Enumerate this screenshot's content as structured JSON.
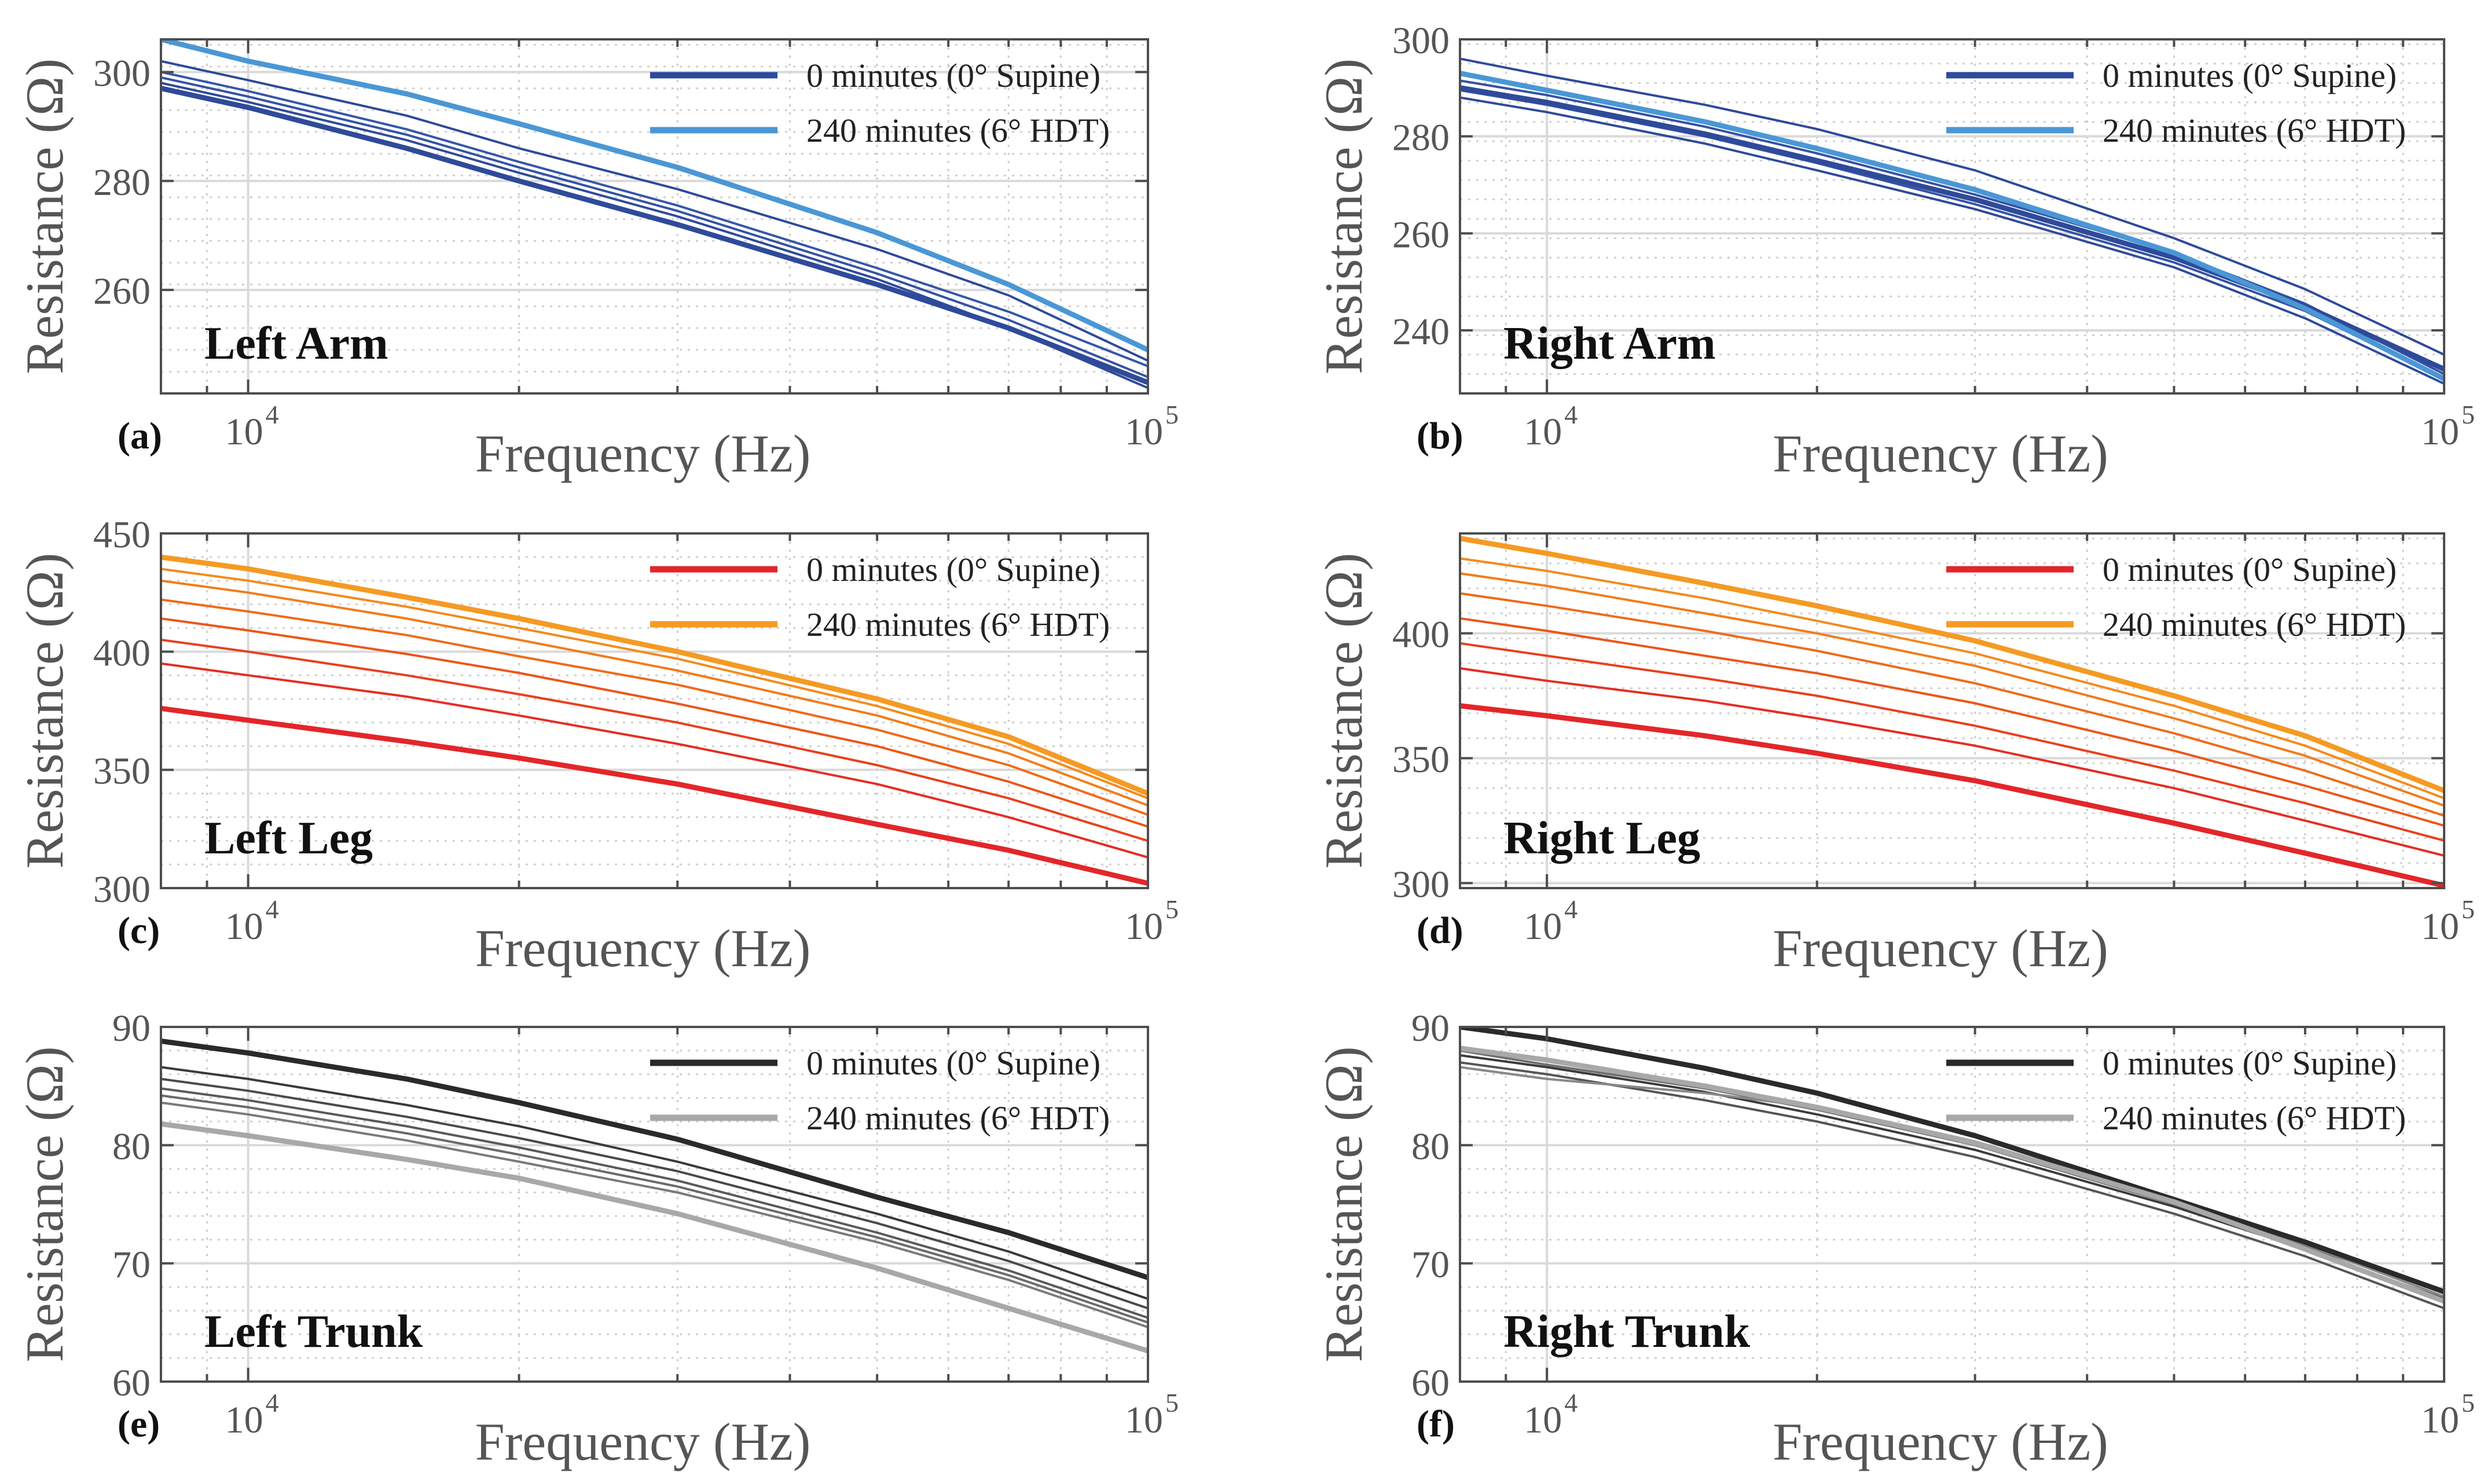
{
  "figure": {
    "x_axis_label": "Frequency (Hz)",
    "y_axis_label": "Resistance (Ω)",
    "legend_labels": [
      "0 minutes (0° Supine)",
      "240 minutes (6° HDT)"
    ]
  },
  "chart_data": [
    {
      "type": "line",
      "panel_label": "(a)",
      "title": "Left Arm",
      "xlabel": "Frequency (Hz)",
      "ylabel": "Resistance (Ω)",
      "xscale": "log",
      "xlim": [
        8000,
        100000
      ],
      "ylim": [
        241,
        306
      ],
      "yticks": [
        260,
        280,
        300
      ],
      "xticks": [
        {
          "base": "10",
          "exp": "4"
        },
        {
          "base": "10",
          "exp": "5"
        }
      ],
      "legend_position": "top-right",
      "legend": [
        {
          "label": "0 minutes (0° Supine)",
          "color": "#2E4A9A"
        },
        {
          "label": "240 minutes (6° HDT)",
          "color": "#4A97D6"
        }
      ],
      "x": [
        8000,
        10000,
        15000,
        20000,
        30000,
        50000,
        70000,
        100000
      ],
      "series": [
        {
          "name": "0 minutes (0° Supine)",
          "color": "#2E4A9A",
          "width": 9,
          "values": [
            297,
            293.5,
            286,
            280,
            272,
            261,
            253,
            243
          ]
        },
        {
          "name": "interval",
          "color": "#2E4A9A",
          "width": 4,
          "values": [
            298,
            294.5,
            287.5,
            281.5,
            273.5,
            262,
            253,
            242
          ]
        },
        {
          "name": "interval",
          "color": "#3552A3",
          "width": 4,
          "values": [
            299,
            295.5,
            288.5,
            282.5,
            274.5,
            263,
            254.5,
            244
          ]
        },
        {
          "name": "interval",
          "color": "#3557AA",
          "width": 4,
          "values": [
            300,
            296.5,
            289.5,
            283.5,
            275.5,
            264,
            256,
            246
          ]
        },
        {
          "name": "interval",
          "color": "#2E4A9A",
          "width": 4,
          "values": [
            302,
            298.5,
            292,
            286,
            278.5,
            267.5,
            259,
            247
          ]
        },
        {
          "name": "240 minutes (6° HDT)",
          "color": "#4A97D6",
          "width": 9,
          "values": [
            306,
            302,
            296,
            290.5,
            282.5,
            270.5,
            261,
            249
          ]
        }
      ]
    },
    {
      "type": "line",
      "panel_label": "(b)",
      "title": "Right Arm",
      "xlabel": "Frequency (Hz)",
      "ylabel": "Resistance (Ω)",
      "xscale": "log",
      "xlim": [
        8000,
        100000
      ],
      "ylim": [
        227,
        300
      ],
      "yticks": [
        240,
        260,
        280,
        300
      ],
      "xticks": [
        {
          "base": "10",
          "exp": "4"
        },
        {
          "base": "10",
          "exp": "5"
        }
      ],
      "legend_position": "top-right",
      "legend": [
        {
          "label": "0 minutes (0° Supine)",
          "color": "#2E4A9A"
        },
        {
          "label": "240 minutes (6° HDT)",
          "color": "#4A97D6"
        }
      ],
      "x": [
        8000,
        10000,
        15000,
        20000,
        30000,
        50000,
        70000,
        100000
      ],
      "series": [
        {
          "name": "0 minutes (0° Supine)",
          "color": "#2E4A9A",
          "width": 9,
          "values": [
            290,
            287,
            280.5,
            275,
            267,
            255,
            245,
            232
          ]
        },
        {
          "name": "interval",
          "color": "#2E4A9A",
          "width": 4,
          "values": [
            288,
            285,
            278.5,
            273,
            265,
            253,
            242.5,
            229
          ]
        },
        {
          "name": "interval",
          "color": "#3552A3",
          "width": 4,
          "values": [
            291.5,
            288.5,
            282,
            276.5,
            268,
            256,
            245.5,
            231
          ]
        },
        {
          "name": "interval",
          "color": "#3552A3",
          "width": 4,
          "values": [
            289.5,
            286.5,
            280,
            274.5,
            266,
            254,
            244,
            230
          ]
        },
        {
          "name": "interval",
          "color": "#2E4A9A",
          "width": 4,
          "values": [
            296,
            292.5,
            286.5,
            281.5,
            273,
            259,
            248.5,
            235
          ]
        },
        {
          "name": "240 minutes (6° HDT)",
          "color": "#4A97D6",
          "width": 9,
          "values": [
            293,
            289.5,
            283,
            277.5,
            269,
            256,
            244.5,
            230
          ]
        }
      ]
    },
    {
      "type": "line",
      "panel_label": "(c)",
      "title": "Left Leg",
      "xlabel": "Frequency (Hz)",
      "ylabel": "Resistance (Ω)",
      "xscale": "log",
      "xlim": [
        8000,
        100000
      ],
      "ylim": [
        300,
        450
      ],
      "yticks": [
        300,
        350,
        400,
        450
      ],
      "xticks": [
        {
          "base": "10",
          "exp": "4"
        },
        {
          "base": "10",
          "exp": "5"
        }
      ],
      "legend_position": "top-right",
      "legend": [
        {
          "label": "0 minutes (0° Supine)",
          "color": "#E3262A"
        },
        {
          "label": "240 minutes (6° HDT)",
          "color": "#F59A23"
        }
      ],
      "x": [
        8000,
        10000,
        15000,
        20000,
        30000,
        50000,
        70000,
        100000
      ],
      "series": [
        {
          "name": "0 minutes (0° Supine)",
          "color": "#E3262A",
          "width": 9,
          "values": [
            376,
            371,
            362,
            355,
            344,
            327,
            316,
            302
          ]
        },
        {
          "name": "interval",
          "color": "#E52D24",
          "width": 4,
          "values": [
            395,
            390,
            381,
            373,
            361,
            344,
            330,
            313
          ]
        },
        {
          "name": "interval",
          "color": "#E8401F",
          "width": 4,
          "values": [
            405,
            400,
            390,
            382,
            370,
            352,
            338,
            320
          ]
        },
        {
          "name": "interval",
          "color": "#EC561B",
          "width": 4,
          "values": [
            414,
            409,
            399,
            391,
            378,
            360,
            345,
            326
          ]
        },
        {
          "name": "interval",
          "color": "#EF6B1A",
          "width": 4,
          "values": [
            422,
            417,
            407,
            398,
            386,
            367,
            352,
            331
          ]
        },
        {
          "name": "interval",
          "color": "#F27C1B",
          "width": 4,
          "values": [
            430,
            425,
            414,
            405,
            392,
            373,
            357,
            335
          ]
        },
        {
          "name": "interval",
          "color": "#F48A1E",
          "width": 4,
          "values": [
            435,
            430,
            419,
            410,
            397,
            377,
            361,
            338
          ]
        },
        {
          "name": "240 minutes (6° HDT)",
          "color": "#F59A23",
          "width": 9,
          "values": [
            440,
            435,
            423,
            414,
            400,
            380,
            364,
            340
          ]
        }
      ]
    },
    {
      "type": "line",
      "panel_label": "(d)",
      "title": "Right Leg",
      "xlabel": "Frequency (Hz)",
      "ylabel": "Resistance (Ω)",
      "xscale": "log",
      "xlim": [
        8000,
        100000
      ],
      "ylim": [
        298,
        440
      ],
      "yticks": [
        300,
        350,
        400
      ],
      "xticks": [
        {
          "base": "10",
          "exp": "4"
        },
        {
          "base": "10",
          "exp": "5"
        }
      ],
      "legend_position": "top-right",
      "legend": [
        {
          "label": "0 minutes (0° Supine)",
          "color": "#E3262A"
        },
        {
          "label": "240 minutes (6° HDT)",
          "color": "#F59A23"
        }
      ],
      "x": [
        8000,
        10000,
        15000,
        20000,
        30000,
        50000,
        70000,
        100000
      ],
      "series": [
        {
          "name": "0 minutes (0° Supine)",
          "color": "#E3262A",
          "width": 9,
          "values": [
            371,
            367,
            359,
            352,
            341,
            324,
            312,
            299
          ]
        },
        {
          "name": "interval",
          "color": "#E52D24",
          "width": 4,
          "values": [
            386,
            381,
            373,
            366,
            355,
            338,
            325,
            311
          ]
        },
        {
          "name": "interval",
          "color": "#E8401F",
          "width": 4,
          "values": [
            396,
            391,
            382,
            375,
            363,
            345,
            332,
            317
          ]
        },
        {
          "name": "interval",
          "color": "#EC561B",
          "width": 4,
          "values": [
            406,
            401,
            391,
            384,
            372,
            353,
            339,
            323
          ]
        },
        {
          "name": "interval",
          "color": "#EF6B1A",
          "width": 4,
          "values": [
            416,
            411,
            401,
            393,
            380,
            360,
            345,
            327
          ]
        },
        {
          "name": "interval",
          "color": "#F27C1B",
          "width": 4,
          "values": [
            424,
            419,
            408,
            400,
            387,
            366,
            351,
            331
          ]
        },
        {
          "name": "interval",
          "color": "#F48A1E",
          "width": 4,
          "values": [
            430,
            425,
            414,
            405,
            392,
            371,
            355,
            334
          ]
        },
        {
          "name": "240 minutes (6° HDT)",
          "color": "#F59A23",
          "width": 9,
          "values": [
            438,
            432,
            420,
            411,
            397,
            375,
            359,
            337
          ]
        }
      ]
    },
    {
      "type": "line",
      "panel_label": "(e)",
      "title": "Left Trunk",
      "xlabel": "Frequency (Hz)",
      "ylabel": "Resistance (Ω)",
      "xscale": "log",
      "xlim": [
        8000,
        100000
      ],
      "ylim": [
        60,
        90
      ],
      "yticks": [
        60,
        70,
        80,
        90
      ],
      "xticks": [
        {
          "base": "10",
          "exp": "4"
        },
        {
          "base": "10",
          "exp": "5"
        }
      ],
      "legend_position": "top-right",
      "legend": [
        {
          "label": "0 minutes (0° Supine)",
          "color": "#2A2A2A"
        },
        {
          "label": "240 minutes (6° HDT)",
          "color": "#A8A8A8"
        }
      ],
      "x": [
        8000,
        10000,
        15000,
        20000,
        30000,
        50000,
        70000,
        100000
      ],
      "series": [
        {
          "name": "0 minutes (0° Supine)",
          "color": "#2A2A2A",
          "width": 9,
          "values": [
            88.8,
            87.8,
            85.6,
            83.6,
            80.5,
            75.6,
            72.6,
            68.8
          ]
        },
        {
          "name": "interval",
          "color": "#3A3A3A",
          "width": 4,
          "values": [
            86.6,
            85.6,
            83.4,
            81.6,
            78.6,
            74.2,
            71.0,
            67.0
          ]
        },
        {
          "name": "interval",
          "color": "#4A4A4A",
          "width": 4,
          "values": [
            85.6,
            84.6,
            82.4,
            80.6,
            77.8,
            73.4,
            70.2,
            66.2
          ]
        },
        {
          "name": "interval",
          "color": "#5A5A5A",
          "width": 4,
          "values": [
            84.8,
            83.8,
            81.6,
            79.8,
            77.0,
            72.6,
            69.4,
            65.4
          ]
        },
        {
          "name": "interval",
          "color": "#6A6A6A",
          "width": 4,
          "values": [
            84.2,
            83.2,
            81.0,
            79.2,
            76.5,
            72.2,
            69.0,
            65.0
          ]
        },
        {
          "name": "interval",
          "color": "#7A7A7A",
          "width": 4,
          "values": [
            83.6,
            82.6,
            80.4,
            78.6,
            76.0,
            71.8,
            68.6,
            64.6
          ]
        },
        {
          "name": "240 minutes (6° HDT)",
          "color": "#A8A8A8",
          "width": 9,
          "values": [
            81.8,
            80.8,
            78.8,
            77.2,
            74.2,
            69.6,
            66.2,
            62.6
          ]
        }
      ]
    },
    {
      "type": "line",
      "panel_label": "(f)",
      "title": "Right Trunk",
      "xlabel": "Frequency (Hz)",
      "ylabel": "Resistance (Ω)",
      "xscale": "log",
      "xlim": [
        8000,
        100000
      ],
      "ylim": [
        60,
        90
      ],
      "yticks": [
        60,
        70,
        80,
        90
      ],
      "xticks": [
        {
          "base": "10",
          "exp": "4"
        },
        {
          "base": "10",
          "exp": "5"
        }
      ],
      "legend_position": "top-right",
      "legend": [
        {
          "label": "0 minutes (0° Supine)",
          "color": "#2A2A2A"
        },
        {
          "label": "240 minutes (6° HDT)",
          "color": "#A8A8A8"
        }
      ],
      "x": [
        8000,
        10000,
        15000,
        20000,
        30000,
        50000,
        70000,
        100000
      ],
      "series": [
        {
          "name": "0 minutes (0° Supine)",
          "color": "#2A2A2A",
          "width": 9,
          "values": [
            90.0,
            89.0,
            86.5,
            84.4,
            80.8,
            75.4,
            71.8,
            67.6
          ]
        },
        {
          "name": "interval",
          "color": "#3A3A3A",
          "width": 4,
          "values": [
            87.6,
            86.6,
            84.5,
            82.6,
            79.6,
            74.8,
            71.2,
            67.0
          ]
        },
        {
          "name": "interval",
          "color": "#555555",
          "width": 4,
          "values": [
            87.0,
            86.0,
            83.8,
            82.0,
            79.0,
            74.2,
            70.6,
            66.2
          ]
        },
        {
          "name": "interval",
          "color": "#6E6E6E",
          "width": 4,
          "values": [
            88.0,
            86.8,
            84.8,
            83.0,
            80.0,
            75.0,
            71.4,
            67.6
          ]
        },
        {
          "name": "interval",
          "color": "#888888",
          "width": 4,
          "values": [
            86.6,
            85.6,
            84.4,
            83.2,
            80.0,
            75.2,
            71.6,
            67.2
          ]
        },
        {
          "name": "240 minutes (6° HDT)",
          "color": "#A8A8A8",
          "width": 9,
          "values": [
            88.2,
            87.2,
            85.0,
            83.2,
            80.2,
            75.2,
            71.2,
            66.8
          ]
        }
      ]
    }
  ]
}
